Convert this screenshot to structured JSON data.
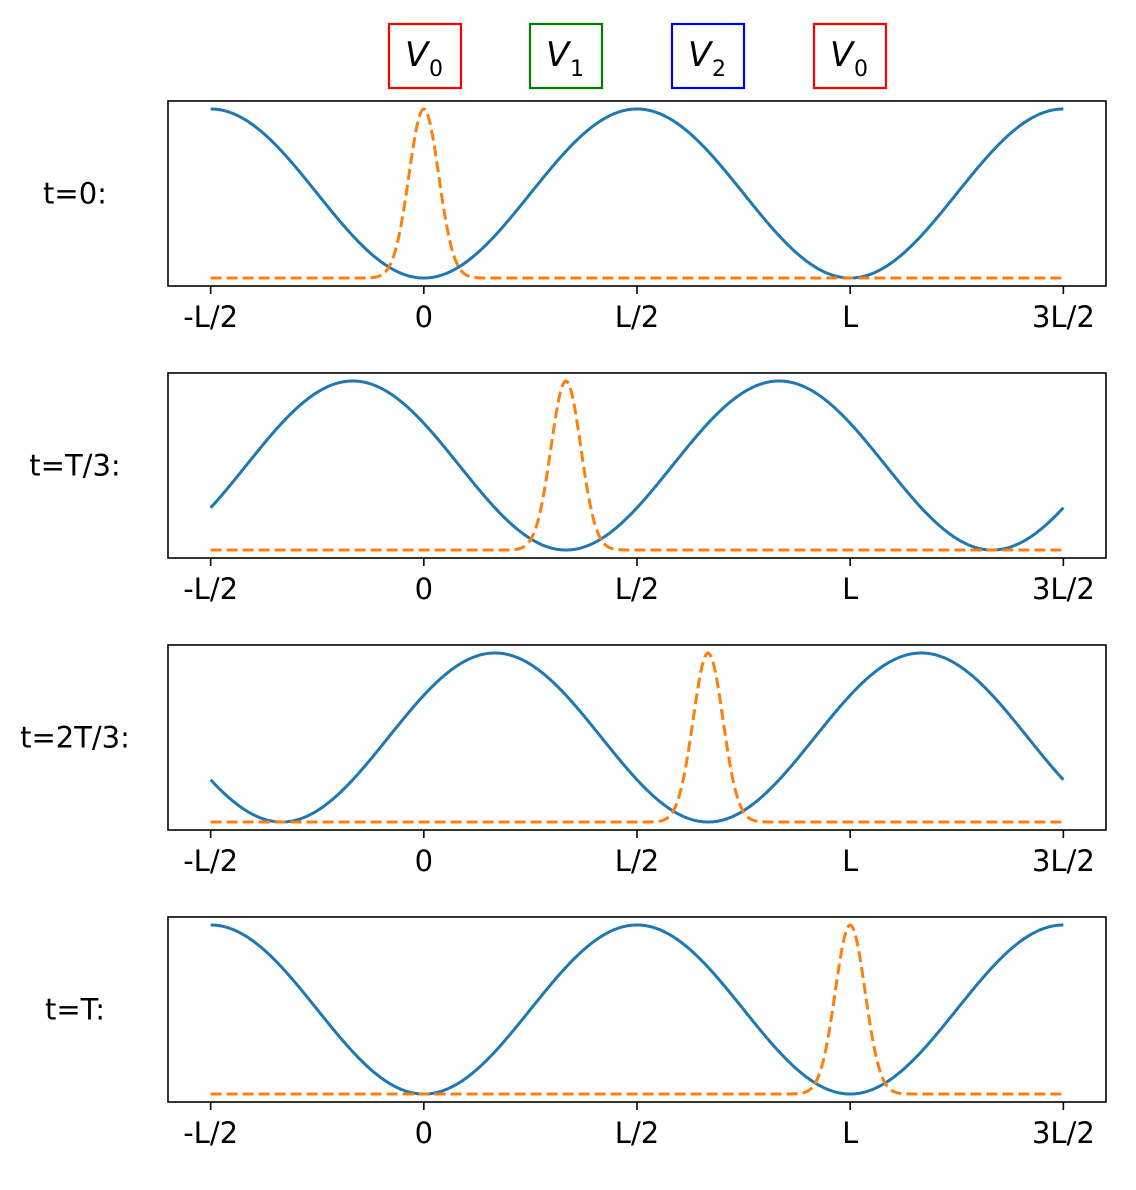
{
  "legend": [
    {
      "symbol": "V",
      "subscript": "0",
      "color": "#ff0000"
    },
    {
      "symbol": "V",
      "subscript": "1",
      "color": "#008000"
    },
    {
      "symbol": "V",
      "subscript": "2",
      "color": "#0000ff"
    },
    {
      "symbol": "V",
      "subscript": "0",
      "color": "#ff0000"
    }
  ],
  "colors": {
    "potential": "#1f77b4",
    "wavepacket": "#ff7f0e",
    "axes": "#000000"
  },
  "chart_data": [
    {
      "type": "line",
      "row_label": "t=0:",
      "x_ticks": [
        "-L/2",
        "0",
        "L/2",
        "L",
        "3L/2"
      ],
      "x_tick_values": [
        -0.5,
        0,
        0.5,
        1,
        1.5
      ],
      "xlim": [
        -0.6,
        1.6
      ],
      "series": [
        {
          "kind": "potential",
          "style": "solid",
          "phase_shift": 0,
          "period": 1
        },
        {
          "kind": "gaussian",
          "style": "dashed",
          "center": 0,
          "width": 0.035
        }
      ]
    },
    {
      "type": "line",
      "row_label": "t=T/3:",
      "x_ticks": [
        "-L/2",
        "0",
        "L/2",
        "L",
        "3L/2"
      ],
      "x_tick_values": [
        -0.5,
        0,
        0.5,
        1,
        1.5
      ],
      "xlim": [
        -0.6,
        1.6
      ],
      "series": [
        {
          "kind": "potential",
          "style": "solid",
          "phase_shift": 0.3333,
          "period": 1
        },
        {
          "kind": "gaussian",
          "style": "dashed",
          "center": 0.3333,
          "width": 0.035
        }
      ]
    },
    {
      "type": "line",
      "row_label": "t=2T/3:",
      "x_ticks": [
        "-L/2",
        "0",
        "L/2",
        "L",
        "3L/2"
      ],
      "x_tick_values": [
        -0.5,
        0,
        0.5,
        1,
        1.5
      ],
      "xlim": [
        -0.6,
        1.6
      ],
      "series": [
        {
          "kind": "potential",
          "style": "solid",
          "phase_shift": 0.6667,
          "period": 1
        },
        {
          "kind": "gaussian",
          "style": "dashed",
          "center": 0.6667,
          "width": 0.035
        }
      ]
    },
    {
      "type": "line",
      "row_label": "t=T:",
      "x_ticks": [
        "-L/2",
        "0",
        "L/2",
        "L",
        "3L/2"
      ],
      "x_tick_values": [
        -0.5,
        0,
        0.5,
        1,
        1.5
      ],
      "xlim": [
        -0.6,
        1.6
      ],
      "series": [
        {
          "kind": "potential",
          "style": "solid",
          "phase_shift": 0,
          "period": 1
        },
        {
          "kind": "gaussian",
          "style": "dashed",
          "center": 1,
          "width": 0.035
        }
      ]
    }
  ]
}
